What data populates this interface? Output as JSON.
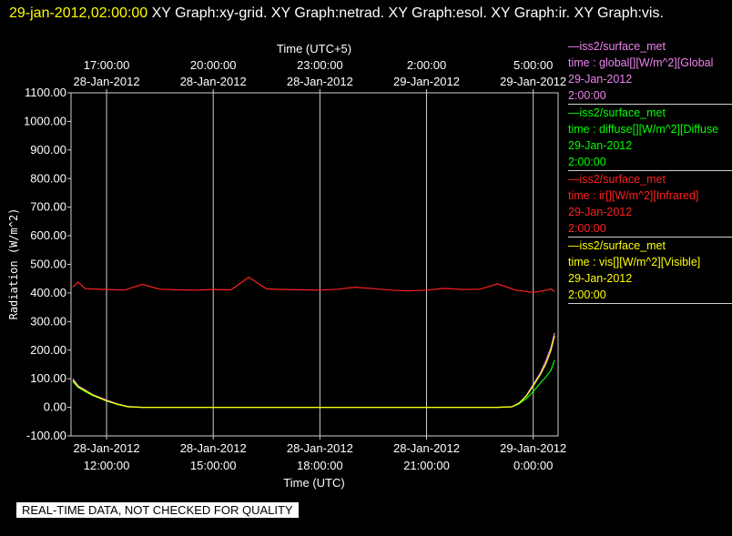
{
  "header": {
    "timestamp": "29-jan-2012,02:00:00",
    "graphs_text": "  XY Graph:xy-grid.  XY Graph:netrad.  XY Graph:esol.  XY Graph:ir.  XY Graph:vis."
  },
  "legend": [
    {
      "line1": "—iss2/surface_met",
      "line2": "time : global[][W/m^2][Global",
      "line3": "29-Jan-2012",
      "line4": "2:00:00",
      "color": "#ee82ee"
    },
    {
      "line1": "—iss2/surface_met",
      "line2": "time : diffuse[][W/m^2][Diffuse",
      "line3": "29-Jan-2012",
      "line4": "2:00:00",
      "color": "#00ff00"
    },
    {
      "line1": "—iss2/surface_met",
      "line2": "time : ir[][W/m^2][Infrared]",
      "line3": "29-Jan-2012",
      "line4": "2:00:00",
      "color": "#ff2020"
    },
    {
      "line1": "—iss2/surface_met",
      "line2": "time : vis[][W/m^2][Visible]",
      "line3": "29-Jan-2012",
      "line4": "2:00:00",
      "color": "#ffff00"
    }
  ],
  "notice": "REAL-TIME DATA, NOT CHECKED FOR QUALITY",
  "chart_data": {
    "type": "line",
    "top_axis_title": "Time (UTC+5)",
    "xlabel": "Time (UTC)",
    "ylabel": "Radiation (W/m^2)",
    "ylim": [
      -100,
      1100
    ],
    "yticks": [
      "-100.00",
      "0.00",
      "100.00",
      "200.00",
      "300.00",
      "400.00",
      "500.00",
      "600.00",
      "700.00",
      "800.00",
      "900.00",
      "1000.00",
      "1100.00"
    ],
    "xlim_hours": [
      11.0,
      24.7
    ],
    "x_ticks_bottom": [
      {
        "hour": 12,
        "date": "28-Jan-2012",
        "time": "12:00:00"
      },
      {
        "hour": 15,
        "date": "28-Jan-2012",
        "time": "15:00:00"
      },
      {
        "hour": 18,
        "date": "28-Jan-2012",
        "time": "18:00:00"
      },
      {
        "hour": 21,
        "date": "28-Jan-2012",
        "time": "21:00:00"
      },
      {
        "hour": 24,
        "date": "29-Jan-2012",
        "time": "0:00:00"
      }
    ],
    "x_ticks_top": [
      {
        "hour": 12,
        "date": "28-Jan-2012",
        "time": "17:00:00"
      },
      {
        "hour": 15,
        "date": "28-Jan-2012",
        "time": "20:00:00"
      },
      {
        "hour": 18,
        "date": "28-Jan-2012",
        "time": "23:00:00"
      },
      {
        "hour": 21,
        "date": "29-Jan-2012",
        "time": "2:00:00"
      },
      {
        "hour": 24,
        "date": "29-Jan-2012",
        "time": "5:00:00"
      }
    ],
    "grid": "vertical",
    "series": [
      {
        "name": "ir",
        "color": "#ff2020",
        "x": [
          11.05,
          11.2,
          11.4,
          12.0,
          12.5,
          13.0,
          13.5,
          14.0,
          14.5,
          15.0,
          15.5,
          16.0,
          16.5,
          17.0,
          17.5,
          18.0,
          18.5,
          19.0,
          19.5,
          20.0,
          20.5,
          21.0,
          21.5,
          22.0,
          22.5,
          23.0,
          23.5,
          24.0,
          24.3,
          24.5,
          24.6
        ],
        "y": [
          420,
          438,
          415,
          412,
          410,
          430,
          413,
          411,
          410,
          412,
          411,
          455,
          414,
          412,
          411,
          410,
          413,
          420,
          415,
          410,
          407,
          410,
          416,
          412,
          413,
          432,
          410,
          402,
          408,
          414,
          404
        ]
      },
      {
        "name": "global",
        "color": "#ee82ee",
        "x": [
          11.05,
          11.2,
          11.4,
          11.6,
          11.8,
          12.0,
          12.3,
          12.6,
          13.0,
          14.0,
          16.0,
          18.0,
          20.0,
          22.0,
          23.0,
          23.4,
          23.6,
          23.8,
          24.0,
          24.2,
          24.35,
          24.5,
          24.6
        ],
        "y": [
          100,
          75,
          60,
          45,
          35,
          25,
          12,
          3,
          0,
          0,
          0,
          0,
          0,
          0,
          0,
          2,
          15,
          40,
          80,
          120,
          160,
          210,
          260
        ]
      },
      {
        "name": "diffuse",
        "color": "#00ff00",
        "x": [
          11.05,
          11.2,
          11.4,
          11.6,
          11.8,
          12.0,
          12.3,
          12.6,
          13.0,
          14.0,
          16.0,
          18.0,
          20.0,
          22.0,
          23.0,
          23.4,
          23.6,
          23.8,
          24.0,
          24.2,
          24.35,
          24.5,
          24.6
        ],
        "y": [
          90,
          70,
          55,
          42,
          32,
          22,
          10,
          2,
          0,
          0,
          0,
          0,
          0,
          0,
          0,
          2,
          12,
          30,
          55,
          85,
          105,
          130,
          165
        ]
      },
      {
        "name": "vis",
        "color": "#ffff00",
        "x": [
          11.05,
          11.2,
          11.4,
          11.6,
          11.8,
          12.0,
          12.3,
          12.6,
          13.0,
          14.0,
          16.0,
          18.0,
          20.0,
          22.0,
          23.0,
          23.4,
          23.6,
          23.8,
          24.0,
          24.2,
          24.35,
          24.5,
          24.6
        ],
        "y": [
          95,
          72,
          58,
          44,
          33,
          23,
          11,
          2,
          0,
          0,
          0,
          0,
          0,
          0,
          0,
          2,
          14,
          38,
          75,
          115,
          150,
          200,
          250
        ]
      }
    ]
  }
}
